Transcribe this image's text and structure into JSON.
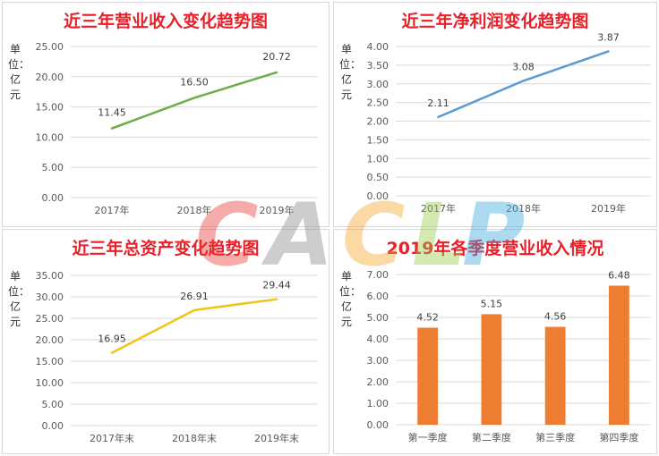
{
  "watermark": {
    "letters": [
      {
        "text": "C",
        "color": "#e53935"
      },
      {
        "text": "A",
        "color": "#8a8a8a"
      },
      {
        "text": "C",
        "color": "#f4a62a"
      },
      {
        "text": "L",
        "color": "#9bc94a"
      },
      {
        "text": "P",
        "color": "#39a8e0"
      }
    ]
  },
  "chart_data": [
    {
      "type": "line",
      "title": "近三年营业收入变化趋势图",
      "unit_label": "单位：亿元",
      "color": "#70ad47",
      "categories": [
        "2017年",
        "2018年",
        "2019年"
      ],
      "values": [
        11.45,
        16.5,
        20.72
      ],
      "value_labels": [
        "11.45",
        "16.50",
        "20.72"
      ],
      "yticks": [
        "25.00",
        "20.00",
        "15.00",
        "10.00",
        "5.00",
        "0.00"
      ],
      "ylim": [
        0,
        25
      ],
      "grid": true
    },
    {
      "type": "line",
      "title": "近三年净利润变化趋势图",
      "unit_label": "单位：亿元",
      "color": "#5b9bd5",
      "categories": [
        "2017年",
        "2018年",
        "2019年"
      ],
      "values": [
        2.11,
        3.08,
        3.87
      ],
      "value_labels": [
        "2.11",
        "3.08",
        "3.87"
      ],
      "yticks": [
        "4.00",
        "3.50",
        "3.00",
        "2.50",
        "2.00",
        "1.50",
        "1.00",
        "0.50",
        "0.00"
      ],
      "ylim": [
        0,
        4
      ],
      "grid": true
    },
    {
      "type": "line",
      "title": "近三年总资产变化趋势图",
      "unit_label": "单位：亿元",
      "color": "#f2c314",
      "categories": [
        "2017年末",
        "2018年末",
        "2019年末"
      ],
      "values": [
        16.95,
        26.91,
        29.44
      ],
      "value_labels": [
        "16.95",
        "26.91",
        "29.44"
      ],
      "yticks": [
        "35.00",
        "30.00",
        "25.00",
        "20.00",
        "15.00",
        "10.00",
        "5.00",
        "0.00"
      ],
      "ylim": [
        0,
        35
      ],
      "grid": true
    },
    {
      "type": "bar",
      "title": "2019年各季度营业收入情况",
      "unit_label": "单位：亿元",
      "color": "#ed7d31",
      "categories": [
        "第一季度",
        "第二季度",
        "第三季度",
        "第四季度"
      ],
      "values": [
        4.52,
        5.15,
        4.56,
        6.48
      ],
      "value_labels": [
        "4.52",
        "5.15",
        "4.56",
        "6.48"
      ],
      "yticks": [
        "7.00",
        "6.00",
        "5.00",
        "4.00",
        "3.00",
        "2.00",
        "1.00",
        "0.00"
      ],
      "ylim": [
        0,
        7
      ],
      "grid": true
    }
  ]
}
